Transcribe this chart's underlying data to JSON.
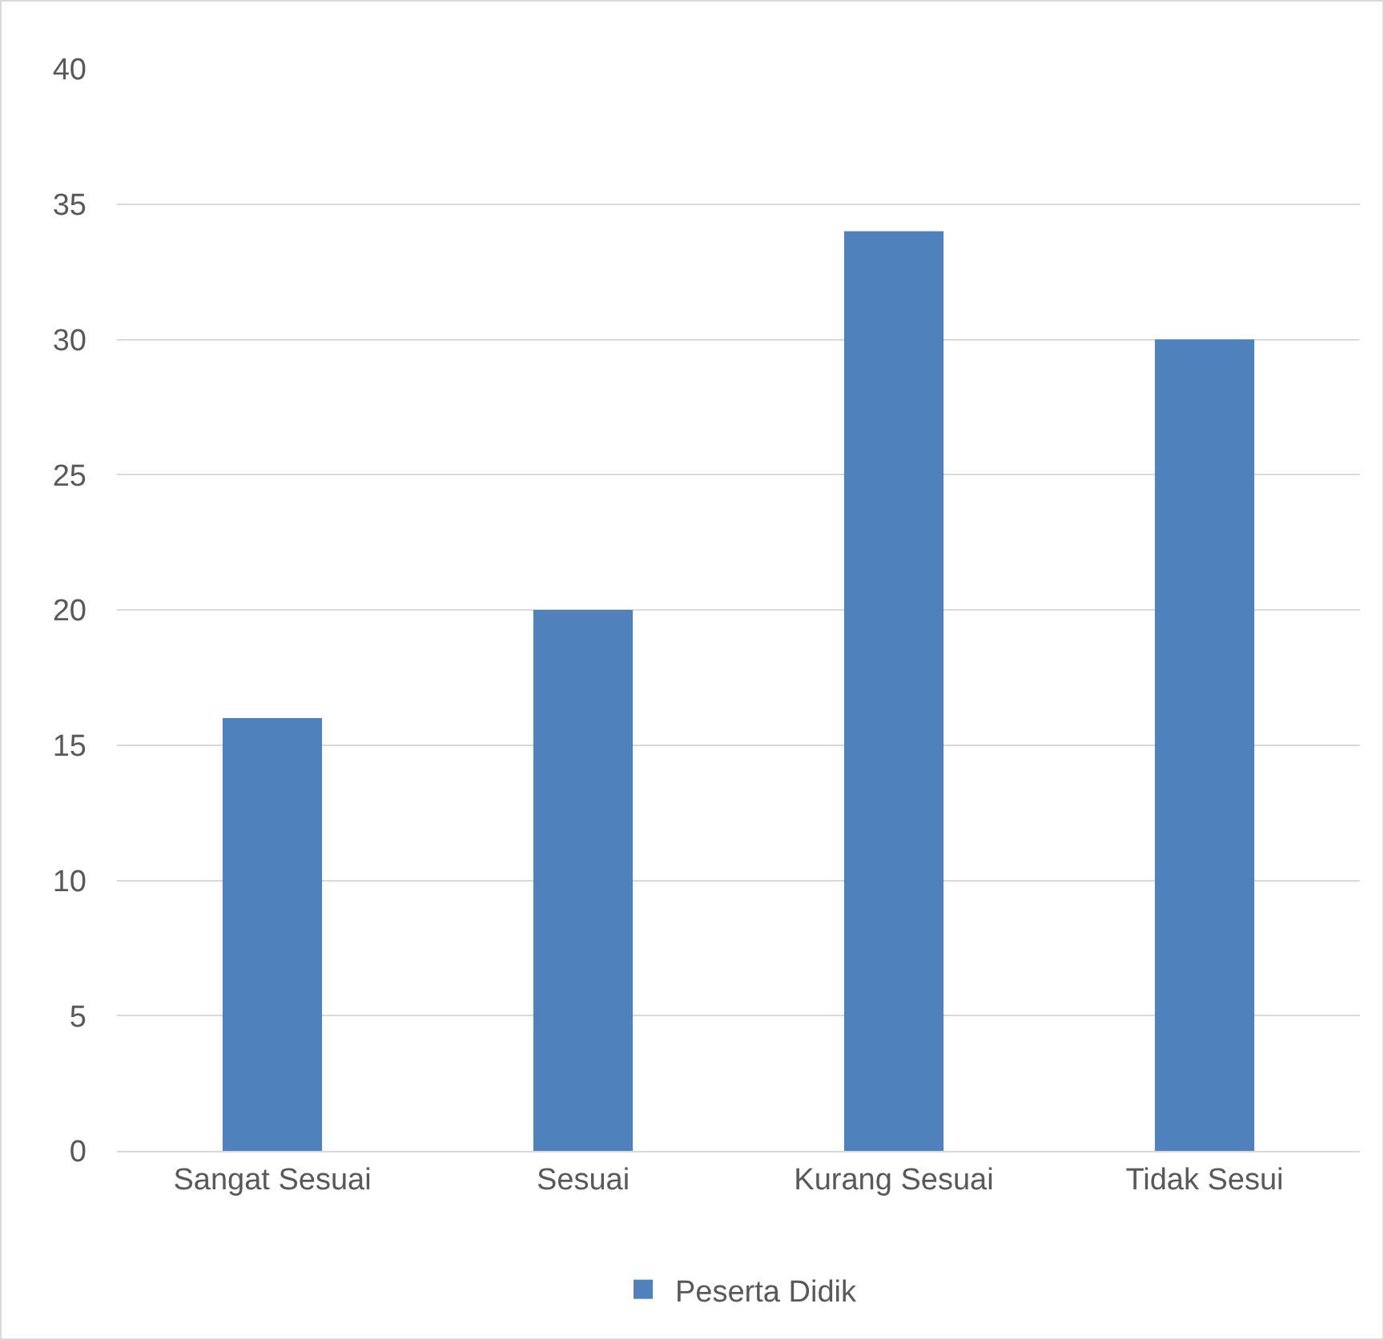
{
  "chart_data": {
    "type": "bar",
    "categories": [
      "Sangat Sesuai",
      "Sesuai",
      "Kurang Sesuai",
      "Tidak Sesui"
    ],
    "series": [
      {
        "name": "Peserta Didik",
        "color": "#4f81bd",
        "values": [
          16,
          20,
          34,
          30
        ]
      }
    ],
    "ylim": [
      0,
      40
    ],
    "yticks": [
      0,
      5,
      10,
      15,
      20,
      25,
      30,
      35,
      40
    ],
    "grid": "y",
    "legend": "bottom"
  }
}
